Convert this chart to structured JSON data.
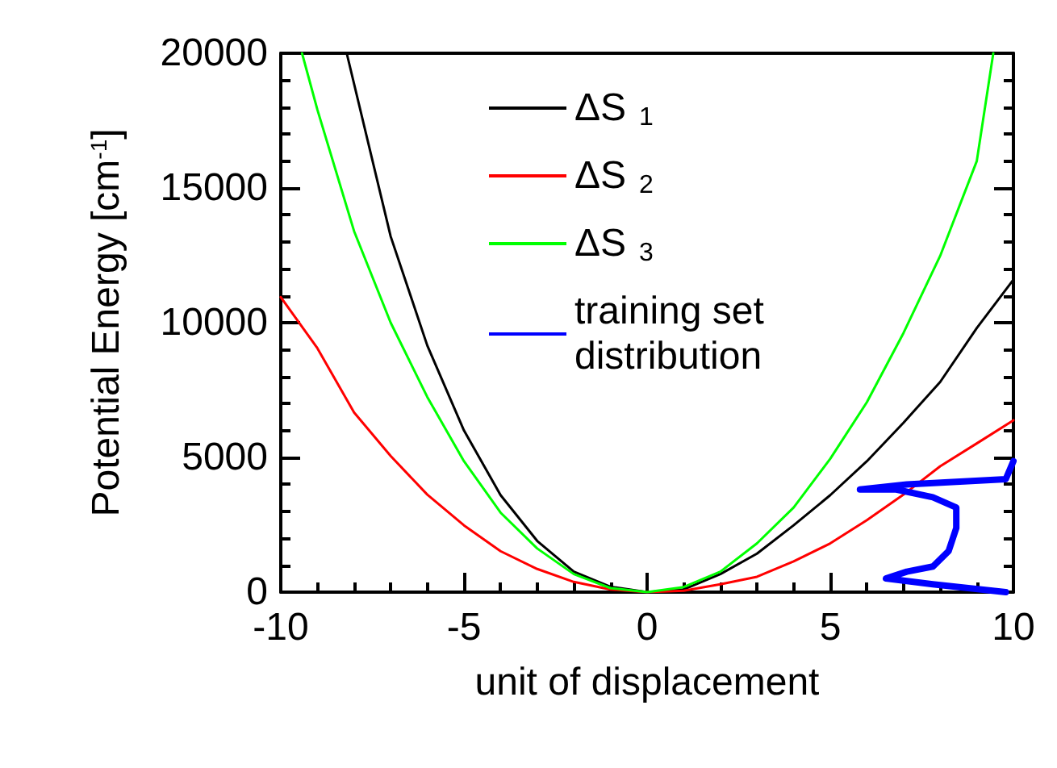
{
  "chart_data": {
    "type": "line",
    "xlabel": "unit of displacement",
    "ylabel": "Potential Energy [cm$^{-1}$]",
    "xlim": [
      -10,
      10
    ],
    "xticks": [
      -10,
      -5,
      0,
      5,
      10
    ],
    "ylim": [
      0,
      20000
    ],
    "yticks": [
      0,
      5000,
      10000,
      15000,
      20000
    ],
    "grid": false,
    "legend": "top",
    "marker": "none",
    "line_style": "solid",
    "series": [
      {
        "name": "ΔS$_{1}$",
        "color": "#000000",
        "x": [
          -8.2,
          -7,
          -6,
          -5,
          -4,
          -3,
          -2,
          -1,
          0,
          1,
          2,
          3,
          4,
          5,
          6,
          7,
          8,
          9,
          10
        ],
        "values": [
          20000,
          13200,
          9150,
          6000,
          3600,
          1900,
          760,
          200,
          0,
          100,
          670,
          1430,
          2480,
          3600,
          4860,
          6290,
          7800,
          9800,
          11600
        ]
      },
      {
        "name": "ΔS$_{2}$",
        "color": "#ff0000",
        "x": [
          -10,
          -9,
          -8,
          -7,
          -6,
          -5,
          -4,
          -3,
          -2,
          -1,
          0,
          1,
          2,
          3,
          4,
          5,
          6,
          7,
          8,
          9,
          10
        ],
        "values": [
          10950,
          9050,
          6670,
          5050,
          3620,
          2480,
          1520,
          860,
          380,
          100,
          0,
          50,
          290,
          570,
          1140,
          1810,
          2670,
          3620,
          4670,
          5520,
          6380
        ]
      },
      {
        "name": "ΔS$_{3}$",
        "color": "#00ff00",
        "x": [
          -9.42,
          -9,
          -8,
          -7,
          -6,
          -5,
          -4,
          -3,
          -2,
          -1,
          0,
          1,
          2,
          3,
          4,
          5,
          6,
          7,
          8,
          9,
          9.45
        ],
        "values": [
          20000,
          17900,
          13400,
          10000,
          7240,
          4860,
          2950,
          1620,
          670,
          150,
          0,
          190,
          760,
          1810,
          3140,
          4950,
          7050,
          9620,
          12480,
          16000,
          20000
        ]
      },
      {
        "name": "training set distribution",
        "color": "#0000ff",
        "x": [
          9.79,
          7.8,
          6.52,
          7.09,
          7.8,
          8.23,
          8.44,
          8.44,
          7.8,
          6.8,
          5.81,
          7.09,
          9.79,
          10
        ],
        "values": [
          0,
          290,
          510,
          760,
          950,
          1520,
          2380,
          3140,
          3520,
          3810,
          3810,
          4000,
          4190,
          4860
        ]
      }
    ]
  }
}
